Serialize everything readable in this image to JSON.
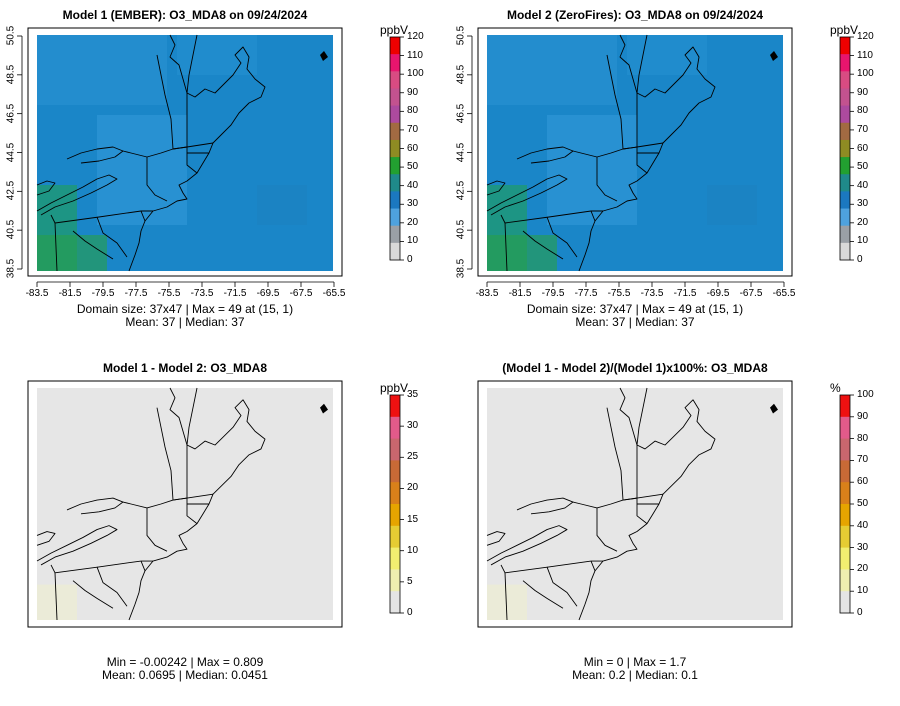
{
  "panels": [
    {
      "title": "Model 1 (EMBER): O3_MDA8 on 09/24/2024",
      "stats_line1": "Domain size: 37x47 | Max = 49 at (15, 1)",
      "stats_line2": "Mean: 37 |  Median: 37",
      "fill_color": "#1a86c8",
      "colorbar": {
        "unit": "ppbV",
        "ticks": [
          "120",
          "110",
          "100",
          "90",
          "80",
          "70",
          "60",
          "50",
          "40",
          "30",
          "20",
          "10",
          "0"
        ],
        "colors": [
          "#ee0000",
          "#e8156e",
          "#d94b82",
          "#c3528f",
          "#ad4a9e",
          "#a26a42",
          "#8e8c23",
          "#22a030",
          "#1f8a8a",
          "#1b78c0",
          "#4ea2de",
          "#9aa0a6",
          "#d9d9d9"
        ]
      }
    },
    {
      "title": "Model 2 (ZeroFires): O3_MDA8 on 09/24/2024",
      "stats_line1": "Domain size: 37x47 | Max = 49 at (15, 1)",
      "stats_line2": "Mean: 37 |  Median: 37",
      "fill_color": "#1a86c8",
      "colorbar": {
        "unit": "ppbV",
        "ticks": [
          "120",
          "110",
          "100",
          "90",
          "80",
          "70",
          "60",
          "50",
          "40",
          "30",
          "20",
          "10",
          "0"
        ],
        "colors": [
          "#ee0000",
          "#e8156e",
          "#d94b82",
          "#c3528f",
          "#ad4a9e",
          "#a26a42",
          "#8e8c23",
          "#22a030",
          "#1f8a8a",
          "#1b78c0",
          "#4ea2de",
          "#9aa0a6",
          "#d9d9d9"
        ]
      }
    },
    {
      "title": "Model 1 - Model 2: O3_MDA8",
      "stats_line1": "Min = -0.00242 | Max = 0.809",
      "stats_line2": "Mean: 0.0695 |  Median: 0.0451",
      "fill_color": "#e6e6e6",
      "colorbar": {
        "unit": "ppbV",
        "ticks": [
          "35",
          "30",
          "25",
          "20",
          "15",
          "10",
          "5",
          "0"
        ],
        "colors": [
          "#ee1111",
          "#e25a8a",
          "#c9666e",
          "#c86a36",
          "#d9801a",
          "#e6a400",
          "#e6cc33",
          "#f2ee70",
          "#eeeeb0",
          "#e4e4e4"
        ]
      }
    },
    {
      "title": "(Model 1 - Model 2)/(Model 1)x100%: O3_MDA8",
      "stats_line1": "Min = 0 | Max = 1.7",
      "stats_line2": "Mean: 0.2 |  Median: 0.1",
      "fill_color": "#e6e6e6",
      "colorbar": {
        "unit": "%",
        "ticks": [
          "100",
          "90",
          "80",
          "70",
          "60",
          "50",
          "40",
          "30",
          "20",
          "10",
          "0"
        ],
        "colors": [
          "#ee1111",
          "#e25a8a",
          "#c9666e",
          "#c86a36",
          "#d9801a",
          "#e6a400",
          "#e6cc33",
          "#f2ee70",
          "#eeeeb0",
          "#e4e4e4"
        ]
      }
    }
  ],
  "axes": {
    "x_ticks": [
      "-83.5",
      "-81.5",
      "-79.5",
      "-77.5",
      "-75.5",
      "-73.5",
      "-71.5",
      "-69.5",
      "-67.5",
      "-65.5"
    ],
    "y_ticks": [
      "38.5",
      "40.5",
      "42.5",
      "44.5",
      "46.5",
      "48.5",
      "50.5"
    ]
  }
}
